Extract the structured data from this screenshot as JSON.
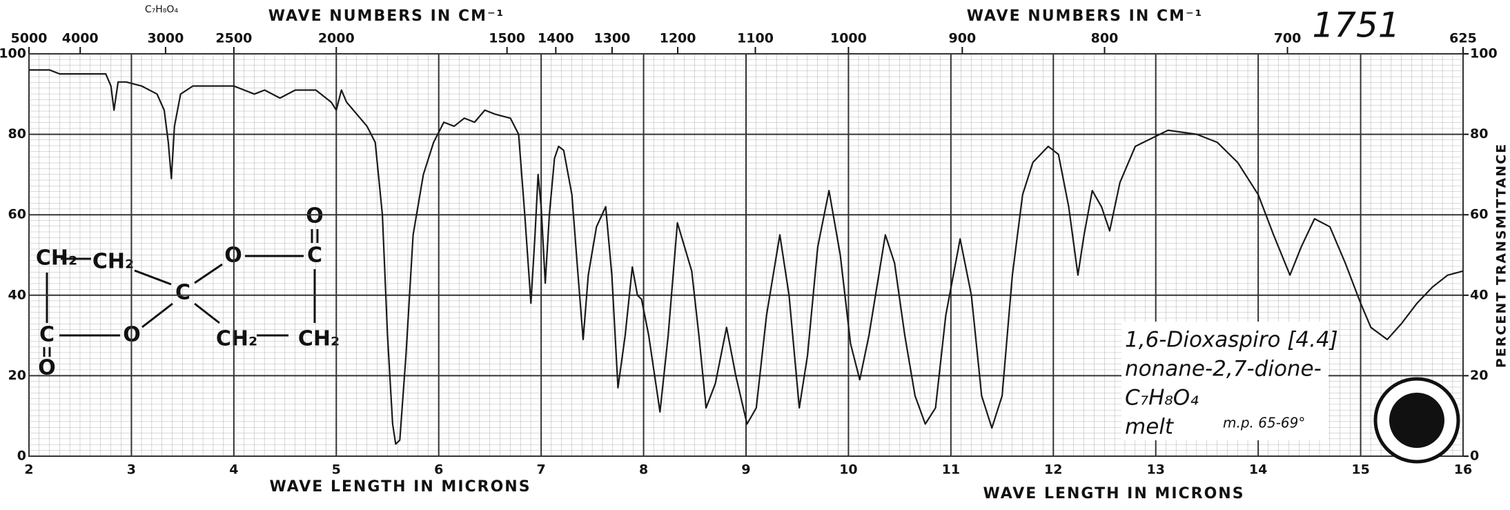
{
  "chart_data": {
    "type": "line",
    "x2label": "WAVE NUMBERS IN CM⁻¹",
    "xlabel": "WAVE LENGTH IN MICRONS",
    "ylabel": "PERCENT TRANSMITTANCE",
    "formula_top": "C₇H₈O₄",
    "spectrum_number": "1751",
    "annotations": [
      "1,6-Dioxaspiro [4.4]",
      "nonane-2,7-dione-",
      "C₇H₈O₄",
      "melt",
      "m.p. 65-69°"
    ],
    "structure": [
      "CH₂",
      "CH₂",
      "C",
      "O",
      "C",
      "O",
      "C",
      "O",
      "O",
      "CH₂",
      "CH₂"
    ],
    "xlim": [
      2,
      16
    ],
    "xticks": [
      2,
      3,
      4,
      5,
      6,
      7,
      8,
      9,
      10,
      11,
      12,
      13,
      14,
      15,
      16
    ],
    "x2ticks": [
      5000,
      4000,
      3000,
      2500,
      2000,
      1500,
      1400,
      1300,
      1200,
      1100,
      1000,
      900,
      800,
      700,
      625
    ],
    "ylim": [
      0,
      100
    ],
    "yticks": [
      0,
      20,
      40,
      60,
      80,
      100
    ],
    "y2ticks": [
      0,
      20,
      40,
      60,
      80,
      100
    ],
    "grid": true,
    "x": [
      2.0,
      2.2,
      2.3,
      2.5,
      2.75,
      2.8,
      2.83,
      2.87,
      2.95,
      3.1,
      3.25,
      3.32,
      3.36,
      3.39,
      3.42,
      3.48,
      3.6,
      3.8,
      4.0,
      4.2,
      4.3,
      4.45,
      4.6,
      4.8,
      4.95,
      5.0,
      5.05,
      5.1,
      5.2,
      5.3,
      5.38,
      5.45,
      5.5,
      5.55,
      5.58,
      5.62,
      5.68,
      5.75,
      5.85,
      5.95,
      6.05,
      6.15,
      6.25,
      6.35,
      6.45,
      6.55,
      6.7,
      6.78,
      6.84,
      6.9,
      6.94,
      6.97,
      7.0,
      7.04,
      7.08,
      7.13,
      7.17,
      7.22,
      7.3,
      7.36,
      7.41,
      7.46,
      7.54,
      7.63,
      7.69,
      7.75,
      7.82,
      7.89,
      7.94,
      7.98,
      8.05,
      8.16,
      8.24,
      8.33,
      8.4,
      8.47,
      8.54,
      8.61,
      8.7,
      8.81,
      8.9,
      9.01,
      9.1,
      9.2,
      9.33,
      9.42,
      9.52,
      9.6,
      9.7,
      9.81,
      9.92,
      10.02,
      10.11,
      10.2,
      10.36,
      10.45,
      10.55,
      10.65,
      10.75,
      10.85,
      10.95,
      11.09,
      11.2,
      11.3,
      11.4,
      11.5,
      11.6,
      11.7,
      11.8,
      11.95,
      12.05,
      12.15,
      12.24,
      12.3,
      12.38,
      12.47,
      12.55,
      12.65,
      12.8,
      13.12,
      13.4,
      13.6,
      13.8,
      14.0,
      14.15,
      14.31,
      14.42,
      14.55,
      14.7,
      14.85,
      15.0,
      15.1,
      15.26,
      15.4,
      15.55,
      15.7,
      15.85,
      16.0
    ],
    "series": [
      {
        "color": "#1a1a1a",
        "values": [
          96,
          96,
          95,
          95,
          95,
          92,
          86,
          93,
          93,
          92,
          90,
          86,
          78,
          69,
          82,
          90,
          92,
          92,
          92,
          90,
          91,
          89,
          91,
          91,
          88,
          86,
          91,
          88,
          85,
          82,
          78,
          60,
          30,
          8,
          3,
          4,
          25,
          55,
          70,
          78,
          83,
          82,
          84,
          83,
          86,
          85,
          84,
          80,
          60,
          38,
          55,
          70,
          62,
          43,
          60,
          74,
          77,
          76,
          65,
          45,
          29,
          45,
          57,
          62,
          45,
          17,
          30,
          47,
          40,
          39,
          30,
          11,
          30,
          58,
          52,
          46,
          30,
          12,
          18,
          32,
          20,
          8,
          12,
          35,
          55,
          40,
          12,
          25,
          52,
          66,
          50,
          28,
          19,
          30,
          55,
          48,
          30,
          15,
          8,
          12,
          35,
          54,
          40,
          15,
          7,
          15,
          45,
          65,
          73,
          77,
          75,
          62,
          45,
          55,
          66,
          62,
          56,
          68,
          77,
          81,
          80,
          78,
          73,
          65,
          55,
          45,
          52,
          59,
          57,
          48,
          38,
          32,
          29,
          33,
          38,
          42,
          45,
          46
        ]
      }
    ]
  }
}
